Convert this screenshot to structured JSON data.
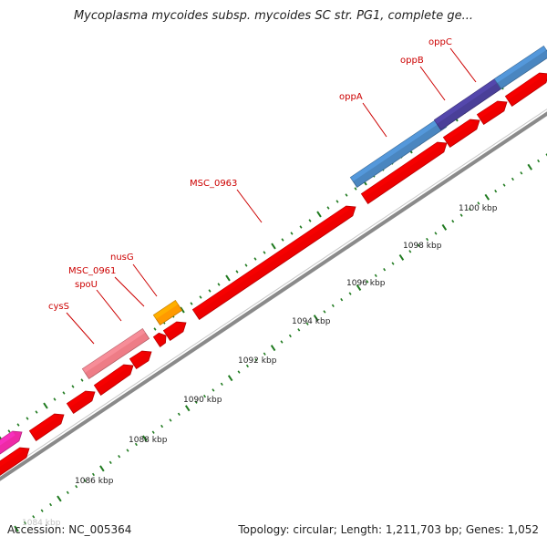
{
  "title": "Mycoplasma mycoides subsp. mycoides SC str. PG1, complete ge...",
  "footer": {
    "accession": "Accession: NC_005364",
    "topology": "Topology: circular; Length: 1,211,703 bp; Genes: 1,052"
  },
  "colors": {
    "gene_red": "#ee0000",
    "gene_pink": "#ee7c86",
    "gene_orange": "#ff9a00",
    "gene_blue": "#4a86c0",
    "gene_purple": "#4a3f98",
    "gene_magenta": "#ee2aa6",
    "label_red": "#cc0000",
    "tick_green": "#1f7a1f",
    "backbone": "#8a8a8a"
  },
  "scale_labels": [
    "1086 kbp",
    "1088 kbp",
    "1090 kbp",
    "1092 kbp",
    "1094 kbp",
    "1096 kbp",
    "1098 kbp",
    "1100 kbp"
  ],
  "partial_scale_label": "1084 kbp",
  "gene_labels": [
    "cysS",
    "spoU",
    "MSC_0961",
    "nusG",
    "MSC_0963",
    "oppA",
    "oppB",
    "oppC"
  ]
}
